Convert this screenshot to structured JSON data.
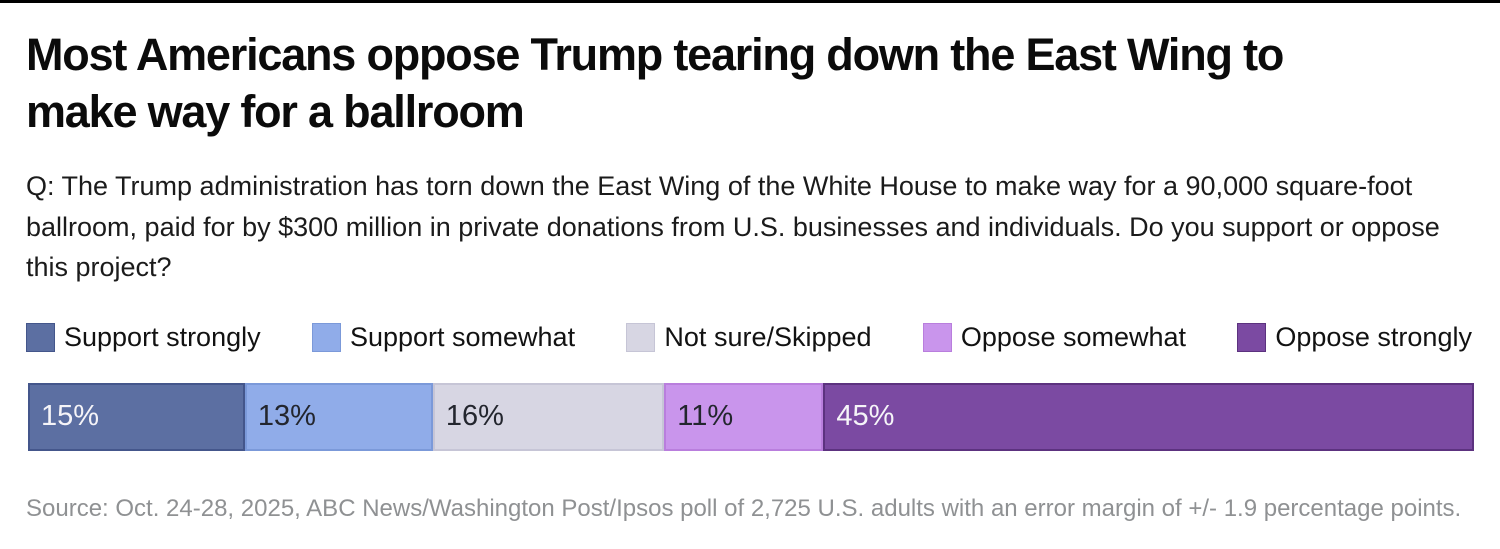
{
  "page": {
    "background": "#ffffff",
    "top_rule_color": "#000000"
  },
  "header": {
    "title": "Most Americans oppose Trump tearing down the East Wing to make way for a ballroom",
    "title_lines": [
      "Most Americans oppose Trump tearing down the East Wing to",
      "make way for a ballroom"
    ]
  },
  "question": "Q: The Trump administration has torn down the East Wing of the White House to make way for a 90,000 square-foot ballroom, paid for by $300 million in private donations from U.S. businesses and individuals. Do you support or oppose this project?",
  "chart_data": {
    "type": "bar",
    "variant": "horizontal-stacked-percentage",
    "title": "Most Americans oppose Trump tearing down the East Wing to make way for a ballroom",
    "categories": [
      "Support strongly",
      "Support somewhat",
      "Not sure/Skipped",
      "Oppose somewhat",
      "Oppose strongly"
    ],
    "values": [
      15,
      13,
      16,
      11,
      45
    ],
    "value_labels": [
      "15%",
      "13%",
      "16%",
      "11%",
      "45%"
    ],
    "colors": [
      "#5c6fa2",
      "#90ace9",
      "#d7d6e3",
      "#c995ec",
      "#7b4aa2"
    ],
    "border_colors": [
      "#44568b",
      "#7b99d9",
      "#c6c5d6",
      "#b97edd",
      "#5c327f"
    ],
    "label_text_colors": [
      "#f5f4f8",
      "#23262e",
      "#23262e",
      "#23262e",
      "#f5f4f8"
    ],
    "xlim": [
      0,
      100
    ],
    "grid": false,
    "legend_position": "top"
  },
  "source": "Source: Oct. 24-28, 2025, ABC News/Washington Post/Ipsos poll of 2,725 U.S. adults with an error margin of +/- 1.9 percentage points."
}
